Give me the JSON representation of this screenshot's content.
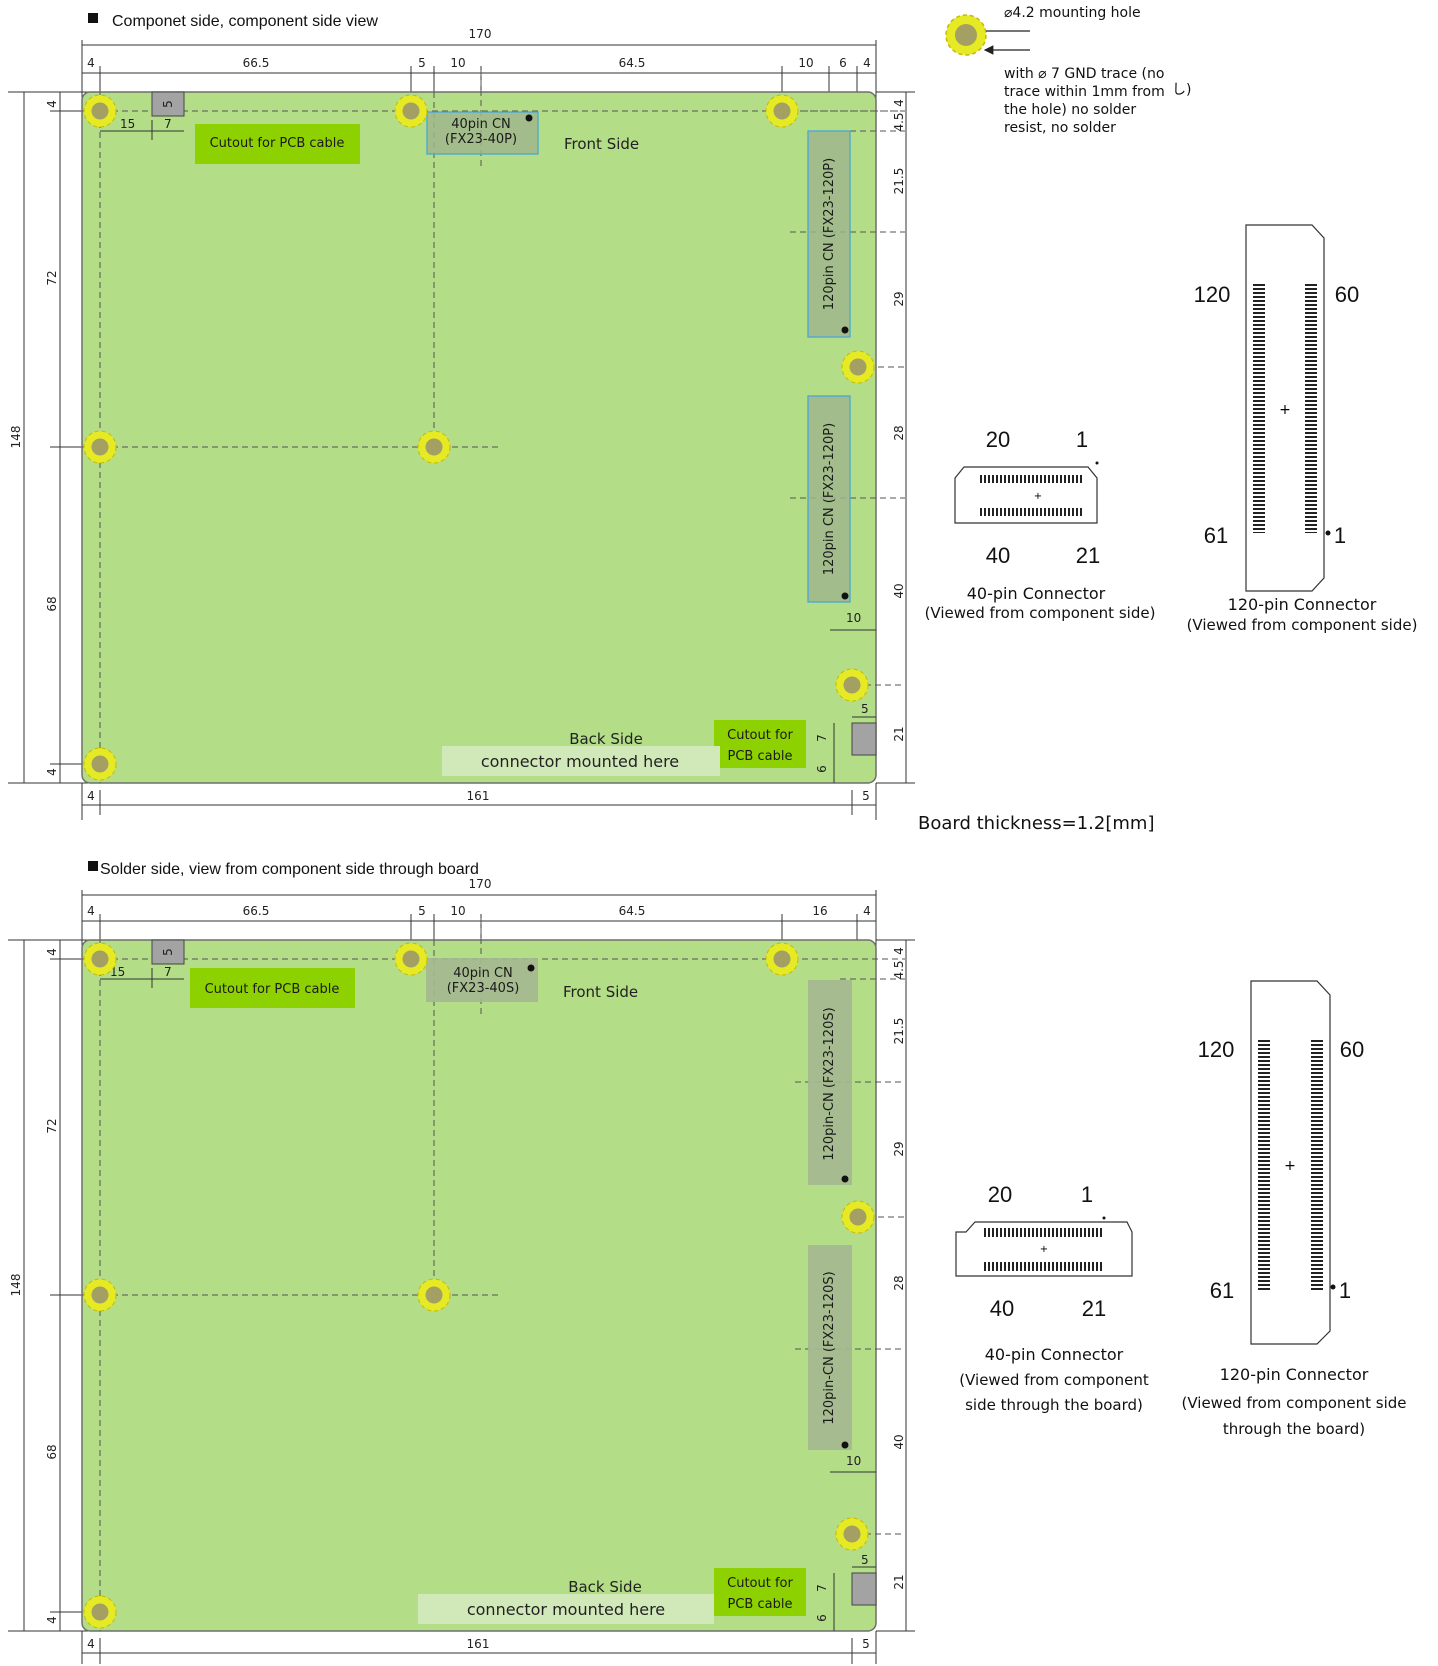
{
  "colors": {
    "board": "#b3dd86",
    "board_stroke": "#6e6e6e",
    "cutout_label_bg": "#8ed100",
    "mount_hole_ring": "#e6ea24",
    "mount_hole_core": "#a49f62",
    "connector_fill": "#9fb78c",
    "connector_stroke": "#4aa7d6",
    "backside_label_bg": "#d1e9b9",
    "cutout_gray": "#a3a3a3"
  },
  "legend": {
    "hole_label": "⌀4.2 mounting hole",
    "trace_note_lines": [
      "with ⌀ 7 GND trace (no",
      "trace within 1mm from",
      "the hole) no solder",
      "resist, no solder"
    ],
    "hint_text": "し)"
  },
  "board_thickness": "Board thickness=1.2[mm]",
  "top_view": {
    "title": "Componet side, component side view",
    "dims": {
      "overall_width": "170",
      "seg_4a": "4",
      "seg_66_5": "66.5",
      "seg_5": "5",
      "seg_10a": "10",
      "seg_64_5": "64.5",
      "seg_10b": "10",
      "seg_6": "6",
      "seg_4b": "4",
      "left_4_top": "4",
      "left_72": "72",
      "left_148": "148",
      "left_68": "68",
      "left_4_bot": "4",
      "right_4": "4",
      "right_4_5": "4.5",
      "right_21_5": "21.5",
      "right_29": "29",
      "right_28": "28",
      "right_40": "40",
      "right_21": "21",
      "cut_5": "5",
      "cut_15": "15",
      "cut_7": "7",
      "conn_10": "10",
      "br_5": "5",
      "br_7": "7",
      "br_6": "6",
      "bottom_4": "4",
      "bottom_161": "161",
      "bottom_5": "5"
    },
    "cutout_top": "Cutout for PCB cable",
    "conn40_lines": [
      "40pin CN",
      "(FX23-40P)"
    ],
    "front_side": "Front Side",
    "conn120_a": "120pin CN (FX23-120P)",
    "conn120_b": "120pin CN (FX23-120P)",
    "back_side": "Back Side",
    "back_mounted": "connector mounted here",
    "cutout_br_lines": [
      "Cutout for",
      "PCB cable"
    ],
    "c40": {
      "n20": "20",
      "n1": "1",
      "n40": "40",
      "n21": "21",
      "caption": "40-pin Connector",
      "subcaption": "(Viewed from component side)"
    },
    "c120": {
      "n120": "120",
      "n60": "60",
      "n61": "61",
      "n1": "1",
      "caption": "120-pin Connector",
      "subcaption": "(Viewed from component side)"
    }
  },
  "bottom_view": {
    "title": "Solder side, view from component side through board",
    "dims": {
      "overall_width": "170",
      "seg_4a": "4",
      "seg_66_5": "66.5",
      "seg_5": "5",
      "seg_10a": "10",
      "seg_64_5": "64.5",
      "seg_16": "16",
      "seg_4b": "4",
      "left_4_top": "4",
      "left_72": "72",
      "left_148": "148",
      "left_68": "68",
      "left_4_bot": "4",
      "right_4": "4",
      "right_4_5": "4.5",
      "right_21_5": "21.5",
      "right_29": "29",
      "right_28": "28",
      "right_40": "40",
      "right_21": "21",
      "cut_5": "5",
      "cut_15": "15",
      "cut_7": "7",
      "conn_10": "10",
      "br_5": "5",
      "br_7": "7",
      "br_6": "6",
      "bottom_4": "4",
      "bottom_161": "161",
      "bottom_5": "5"
    },
    "cutout_top": "Cutout for PCB cable",
    "conn40_lines": [
      "40pin CN",
      "(FX23-40S)"
    ],
    "front_side": "Front Side",
    "conn120_a": "120pin-CN (FX23-120S)",
    "conn120_b": "120pin-CN (FX23-120S)",
    "back_side": "Back Side",
    "back_mounted": "connector mounted here",
    "cutout_br_lines": [
      "Cutout for",
      "PCB cable"
    ],
    "c40": {
      "n20": "20",
      "n1": "1",
      "n40": "40",
      "n21": "21",
      "caption": "40-pin Connector",
      "subcaption_lines": [
        "(Viewed from component",
        "side through the board)"
      ]
    },
    "c120": {
      "n120": "120",
      "n60": "60",
      "n61": "61",
      "n1": "1",
      "caption": "120-pin Connector",
      "subcaption_lines": [
        "(Viewed from component side",
        "through the board)"
      ]
    }
  }
}
